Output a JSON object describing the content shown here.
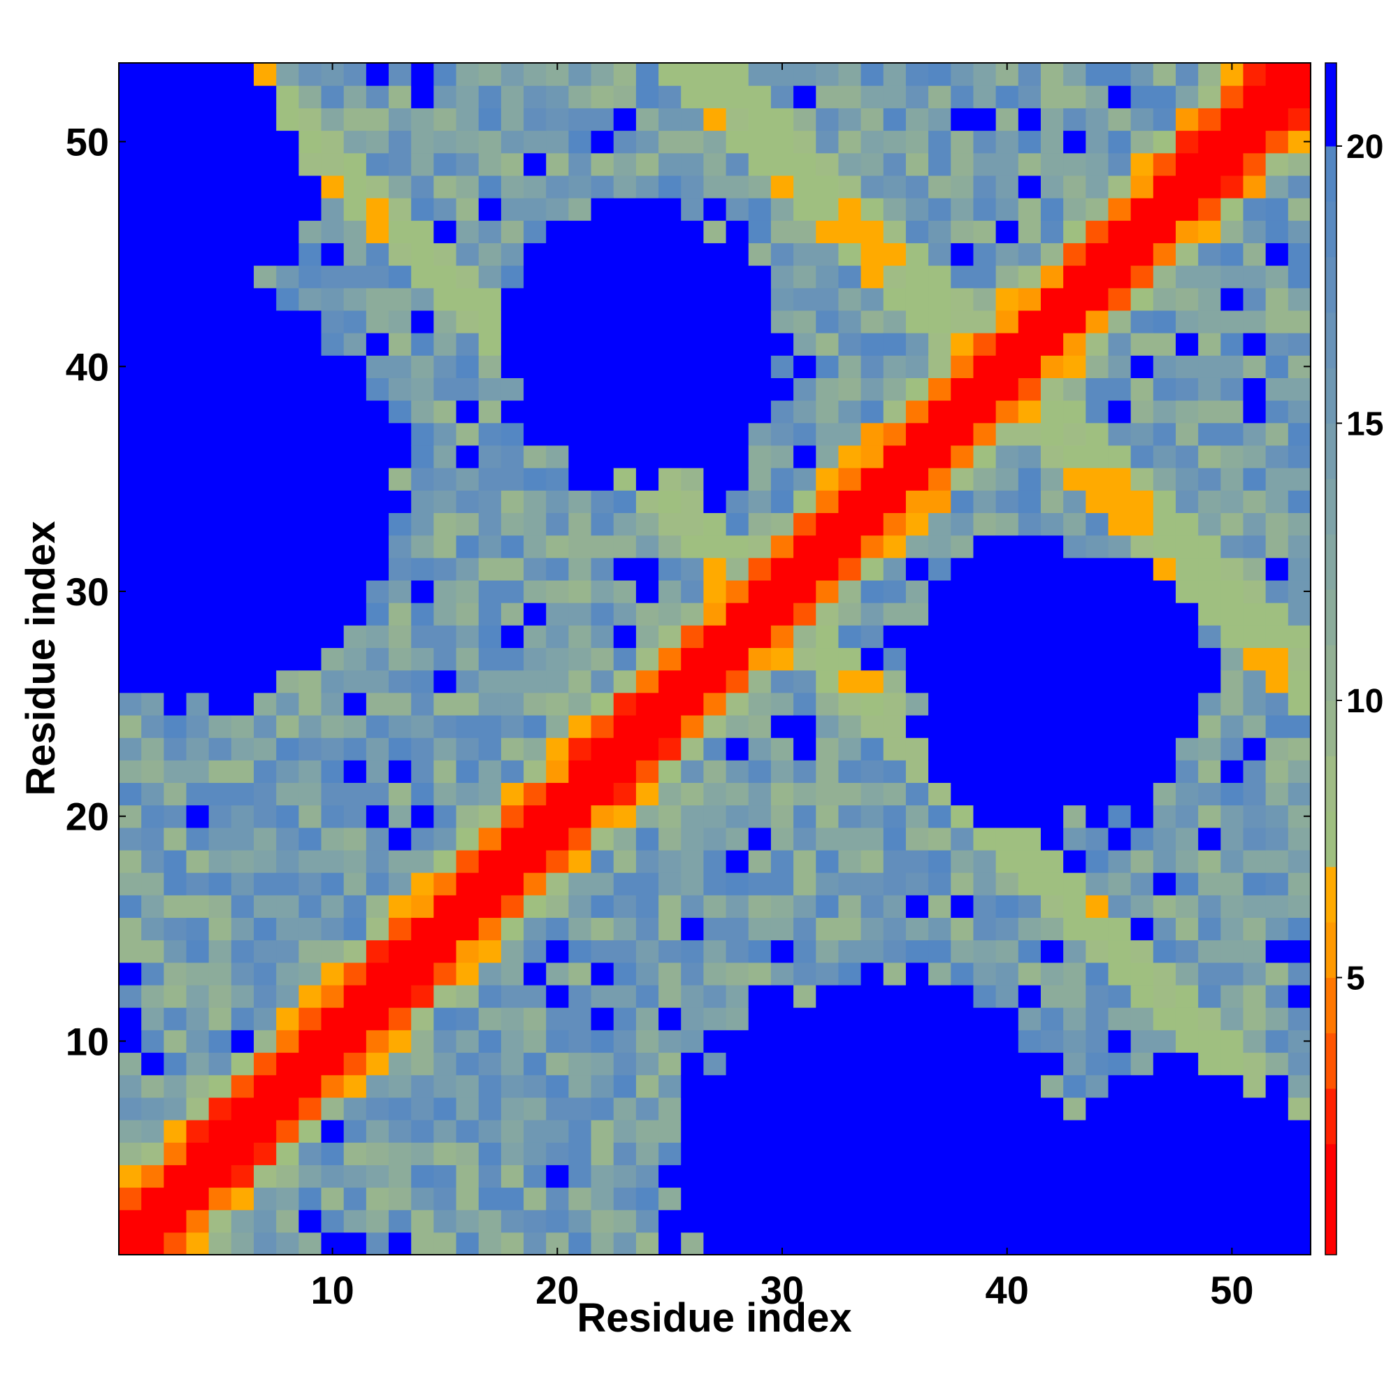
{
  "chart_data": {
    "type": "heatmap",
    "title": "",
    "xlabel": "Residue index",
    "ylabel": "Residue index",
    "n": 53,
    "x_ticks": [
      10,
      20,
      30,
      40,
      50
    ],
    "y_ticks": [
      10,
      20,
      30,
      40,
      50
    ],
    "colorbar": {
      "ticks": [
        5,
        10,
        15,
        20
      ],
      "range": [
        0,
        21.5
      ],
      "bin_edges": [
        0,
        2,
        3,
        4,
        5,
        6,
        7,
        8,
        9,
        10,
        11,
        12,
        13,
        14,
        15,
        16,
        17,
        18,
        19,
        20,
        21.5
      ],
      "colors": [
        "#ff0000",
        "#ff2200",
        "#ff5500",
        "#ff7700",
        "#ff9900",
        "#ffaa00",
        "#9fbf80",
        "#a0bc85",
        "#98b58e",
        "#93b094",
        "#8cac9b",
        "#85a7a2",
        "#7fa3a8",
        "#779dae",
        "#6f98b3",
        "#6993b8",
        "#628ebc",
        "#5a8ac0",
        "#5487c3",
        "#0000ff"
      ]
    },
    "grid": false,
    "legend": "colorbar-right",
    "colors": {
      "near": "#ff0000",
      "mid": "#ff9900",
      "far_green": "#9fbf80",
      "far_blue": "#5a8ac0",
      "cutoff": "#0000ff"
    },
    "blobs": [
      {
        "i": 24,
        "j": 41,
        "r": 6.5
      },
      {
        "i": 42,
        "j": 26,
        "r": 6.5
      },
      {
        "i": 4,
        "j": 34,
        "r": 9.0
      },
      {
        "i": 34,
        "j": 4,
        "r": 9.0
      },
      {
        "i": 2,
        "j": 48,
        "r": 7.0
      },
      {
        "i": 48,
        "j": 2,
        "r": 7.0
      }
    ],
    "anti_bands": [
      {
        "pair": [
          36,
          43
        ],
        "width": 1.2,
        "value": 6.5
      },
      {
        "pair": [
          44,
          15
        ],
        "width": 1.0,
        "value": 6.8
      },
      {
        "pair": [
          52,
          28
        ],
        "width": 1.0,
        "value": 7.0
      }
    ],
    "seed": 53
  }
}
